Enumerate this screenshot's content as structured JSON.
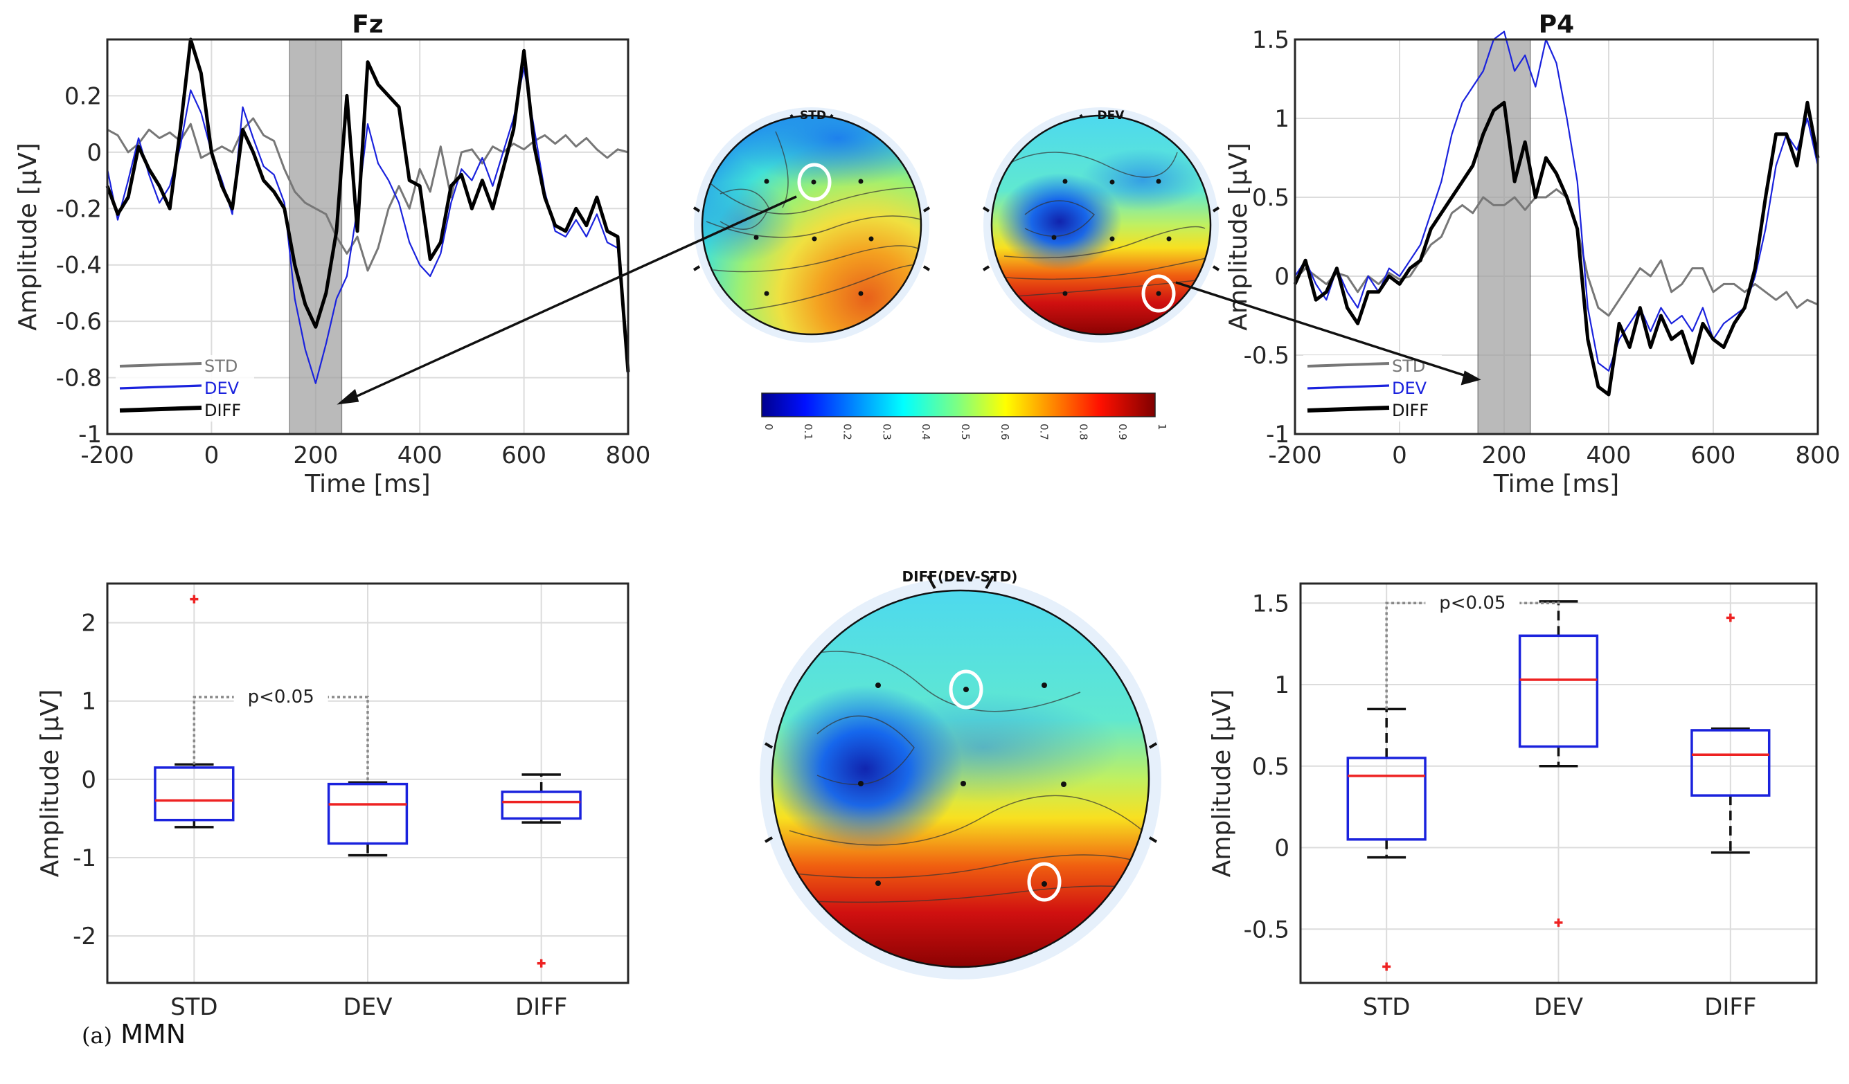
{
  "caption": {
    "label": "(a)",
    "text": "MMN"
  },
  "colors": {
    "std": "#777777",
    "dev": "#1a22dd",
    "diff": "#000000",
    "window": "#9e9e9e",
    "box": "#1a22dd",
    "median": "#ee2222",
    "outlier": "#ee2222",
    "grid": "#dcdcdc"
  },
  "chart_data": [
    {
      "id": "erp_fz",
      "type": "line",
      "title": "Fz",
      "xlabel": "Time [ms]",
      "ylabel": "Amplitude [µV]",
      "xlim": [
        -200,
        800
      ],
      "ylim": [
        -1,
        0.4
      ],
      "xticks": [
        -200,
        0,
        200,
        400,
        600,
        800
      ],
      "yticks": [
        0.2,
        0,
        -0.2,
        -0.4,
        -0.6,
        -0.8,
        -1
      ],
      "ytick_labels": [
        "0.2",
        "0",
        "-0.2",
        "-0.4",
        "-0.6",
        "-0.8",
        "-1"
      ],
      "grid": true,
      "legend": "bottom-left",
      "shaded_window": [
        150,
        250
      ],
      "series": [
        {
          "name": "STD",
          "x": [
            -200,
            -180,
            -160,
            -140,
            -120,
            -100,
            -80,
            -60,
            -40,
            -20,
            0,
            20,
            40,
            60,
            80,
            100,
            120,
            140,
            160,
            180,
            200,
            220,
            240,
            260,
            280,
            300,
            320,
            340,
            360,
            380,
            400,
            420,
            440,
            460,
            480,
            500,
            520,
            540,
            560,
            580,
            600,
            620,
            640,
            660,
            680,
            700,
            720,
            740,
            760,
            780,
            800
          ],
          "y": [
            0.08,
            0.06,
            0.0,
            0.03,
            0.08,
            0.05,
            0.07,
            0.04,
            0.1,
            -0.02,
            0.0,
            0.02,
            0.0,
            0.08,
            0.12,
            0.06,
            0.04,
            -0.06,
            -0.14,
            -0.18,
            -0.2,
            -0.22,
            -0.3,
            -0.36,
            -0.3,
            -0.42,
            -0.34,
            -0.2,
            -0.12,
            -0.2,
            -0.06,
            -0.14,
            0.02,
            -0.16,
            0.0,
            0.01,
            -0.04,
            0.02,
            0.0,
            0.03,
            0.01,
            0.04,
            0.06,
            0.03,
            0.06,
            0.02,
            0.05,
            0.01,
            -0.02,
            0.01,
            0.0
          ]
        },
        {
          "name": "DEV",
          "x": [
            -200,
            -180,
            -160,
            -140,
            -120,
            -100,
            -80,
            -60,
            -40,
            -20,
            0,
            20,
            40,
            60,
            80,
            100,
            120,
            140,
            160,
            180,
            200,
            220,
            240,
            260,
            280,
            300,
            320,
            340,
            360,
            380,
            400,
            420,
            440,
            460,
            480,
            500,
            520,
            540,
            560,
            580,
            600,
            620,
            640,
            660,
            680,
            700,
            720,
            740,
            760,
            780,
            800
          ],
          "y": [
            -0.06,
            -0.24,
            -0.1,
            0.05,
            -0.08,
            -0.18,
            -0.12,
            0.02,
            0.22,
            0.14,
            0.0,
            -0.1,
            -0.22,
            0.16,
            0.05,
            -0.05,
            -0.08,
            -0.18,
            -0.52,
            -0.7,
            -0.82,
            -0.68,
            -0.52,
            -0.44,
            -0.2,
            0.1,
            -0.04,
            -0.1,
            -0.18,
            -0.32,
            -0.4,
            -0.44,
            -0.36,
            -0.18,
            -0.06,
            -0.1,
            -0.02,
            -0.12,
            0.0,
            0.12,
            0.3,
            0.08,
            -0.14,
            -0.28,
            -0.3,
            -0.24,
            -0.3,
            -0.22,
            -0.32,
            -0.34,
            -0.8
          ]
        },
        {
          "name": "DIFF",
          "x": [
            -200,
            -180,
            -160,
            -140,
            -120,
            -100,
            -80,
            -60,
            -40,
            -20,
            0,
            20,
            40,
            60,
            80,
            100,
            120,
            140,
            160,
            180,
            200,
            220,
            240,
            260,
            280,
            300,
            320,
            340,
            360,
            380,
            400,
            420,
            440,
            460,
            480,
            500,
            520,
            540,
            560,
            580,
            600,
            620,
            640,
            660,
            680,
            700,
            720,
            740,
            760,
            780,
            800
          ],
          "y": [
            -0.12,
            -0.22,
            -0.16,
            0.02,
            -0.06,
            -0.12,
            -0.2,
            0.08,
            0.4,
            0.28,
            0.0,
            -0.12,
            -0.2,
            0.08,
            0.0,
            -0.1,
            -0.14,
            -0.2,
            -0.4,
            -0.54,
            -0.62,
            -0.5,
            -0.28,
            0.2,
            -0.28,
            0.32,
            0.24,
            0.2,
            0.16,
            -0.1,
            -0.12,
            -0.38,
            -0.32,
            -0.12,
            -0.08,
            -0.2,
            -0.1,
            -0.2,
            -0.06,
            0.08,
            0.36,
            0.02,
            -0.16,
            -0.26,
            -0.28,
            -0.2,
            -0.26,
            -0.16,
            -0.28,
            -0.3,
            -0.78
          ]
        }
      ]
    },
    {
      "id": "erp_p4",
      "type": "line",
      "title": "P4",
      "xlabel": "Time [ms]",
      "ylabel": "Amplitude [µV]",
      "xlim": [
        -200,
        800
      ],
      "ylim": [
        -1,
        1.5
      ],
      "xticks": [
        -200,
        0,
        200,
        400,
        600,
        800
      ],
      "yticks": [
        1.5,
        1,
        0.5,
        0,
        -0.5,
        -1
      ],
      "ytick_labels": [
        "1.5",
        "1",
        "0.5",
        "0",
        "-0.5",
        "-1"
      ],
      "grid": true,
      "legend": "bottom-left",
      "shaded_window": [
        150,
        250
      ],
      "series": [
        {
          "name": "STD",
          "x": [
            -200,
            -180,
            -160,
            -140,
            -120,
            -100,
            -80,
            -60,
            -40,
            -20,
            0,
            20,
            40,
            60,
            80,
            100,
            120,
            140,
            160,
            180,
            200,
            220,
            240,
            260,
            280,
            300,
            320,
            340,
            360,
            380,
            400,
            420,
            440,
            460,
            480,
            500,
            520,
            540,
            560,
            580,
            600,
            620,
            640,
            660,
            680,
            700,
            720,
            740,
            760,
            780,
            800
          ],
          "y": [
            -0.02,
            0.05,
            0.0,
            -0.05,
            0.02,
            0.0,
            -0.1,
            0.0,
            -0.05,
            0.02,
            -0.02,
            0.0,
            0.1,
            0.2,
            0.25,
            0.4,
            0.45,
            0.4,
            0.5,
            0.45,
            0.45,
            0.5,
            0.42,
            0.5,
            0.5,
            0.55,
            0.5,
            0.3,
            0.0,
            -0.2,
            -0.25,
            -0.15,
            -0.05,
            0.05,
            0.0,
            0.1,
            -0.1,
            -0.05,
            0.05,
            0.05,
            -0.1,
            -0.05,
            -0.05,
            -0.1,
            -0.05,
            -0.1,
            -0.15,
            -0.1,
            -0.2,
            -0.15,
            -0.18
          ]
        },
        {
          "name": "DEV",
          "x": [
            -200,
            -180,
            -160,
            -140,
            -120,
            -100,
            -80,
            -60,
            -40,
            -20,
            0,
            20,
            40,
            60,
            80,
            100,
            120,
            140,
            160,
            180,
            200,
            220,
            240,
            260,
            280,
            300,
            320,
            340,
            360,
            380,
            400,
            420,
            440,
            460,
            480,
            500,
            520,
            540,
            560,
            580,
            600,
            620,
            640,
            660,
            680,
            700,
            720,
            740,
            760,
            780,
            800
          ],
          "y": [
            0.0,
            0.1,
            -0.05,
            -0.15,
            0.05,
            -0.1,
            -0.2,
            0.0,
            -0.1,
            0.05,
            0.0,
            0.1,
            0.2,
            0.4,
            0.6,
            0.9,
            1.1,
            1.2,
            1.3,
            1.5,
            1.55,
            1.3,
            1.4,
            1.2,
            1.5,
            1.35,
            1.0,
            0.6,
            -0.2,
            -0.55,
            -0.6,
            -0.4,
            -0.3,
            -0.2,
            -0.35,
            -0.2,
            -0.3,
            -0.25,
            -0.35,
            -0.2,
            -0.4,
            -0.3,
            -0.25,
            -0.2,
            0.0,
            0.3,
            0.7,
            0.9,
            0.8,
            1.0,
            0.7
          ]
        },
        {
          "name": "DIFF",
          "x": [
            -200,
            -180,
            -160,
            -140,
            -120,
            -100,
            -80,
            -60,
            -40,
            -20,
            0,
            20,
            40,
            60,
            80,
            100,
            120,
            140,
            160,
            180,
            200,
            220,
            240,
            260,
            280,
            300,
            320,
            340,
            360,
            380,
            400,
            420,
            440,
            460,
            480,
            500,
            520,
            540,
            560,
            580,
            600,
            620,
            640,
            660,
            680,
            700,
            720,
            740,
            760,
            780,
            800
          ],
          "y": [
            -0.05,
            0.1,
            -0.15,
            -0.1,
            0.05,
            -0.2,
            -0.3,
            -0.1,
            -0.1,
            0.0,
            -0.05,
            0.05,
            0.1,
            0.3,
            0.4,
            0.5,
            0.6,
            0.7,
            0.9,
            1.05,
            1.1,
            0.6,
            0.85,
            0.5,
            0.75,
            0.65,
            0.5,
            0.3,
            -0.4,
            -0.7,
            -0.75,
            -0.3,
            -0.45,
            -0.2,
            -0.45,
            -0.25,
            -0.4,
            -0.35,
            -0.55,
            -0.3,
            -0.4,
            -0.45,
            -0.3,
            -0.2,
            0.05,
            0.5,
            0.9,
            0.9,
            0.7,
            1.1,
            0.75
          ]
        }
      ]
    },
    {
      "id": "box_fz",
      "type": "box",
      "ylabel": "Amplitude [µV]",
      "categories": [
        "STD",
        "DEV",
        "DIFF"
      ],
      "ylim": [
        -2.6,
        2.5
      ],
      "yticks": [
        2,
        1,
        0,
        -1,
        -2
      ],
      "ytick_labels": [
        "2",
        "1",
        "0",
        "-1",
        "-2"
      ],
      "grid": true,
      "boxes": [
        {
          "q1": -0.52,
          "median": -0.27,
          "q3": 0.15,
          "whisker_low": -0.61,
          "whisker_high": 0.19,
          "outliers": [
            2.3
          ]
        },
        {
          "q1": -0.82,
          "median": -0.32,
          "q3": -0.06,
          "whisker_low": -0.97,
          "whisker_high": -0.04,
          "outliers": []
        },
        {
          "q1": -0.5,
          "median": -0.29,
          "q3": -0.16,
          "whisker_low": -0.55,
          "whisker_high": 0.06,
          "outliers": [
            -2.35
          ]
        }
      ],
      "significance": {
        "label": "p<0.05",
        "from": 0,
        "to": 1,
        "y": 1.05
      }
    },
    {
      "id": "box_p4",
      "type": "box",
      "ylabel": "Amplitude [µV]",
      "categories": [
        "STD",
        "DEV",
        "DIFF"
      ],
      "ylim": [
        -0.83,
        1.62
      ],
      "yticks": [
        1.5,
        1,
        0.5,
        0,
        -0.5
      ],
      "ytick_labels": [
        "1.5",
        "1",
        "0.5",
        "0",
        "-0.5"
      ],
      "grid": true,
      "boxes": [
        {
          "q1": 0.05,
          "median": 0.44,
          "q3": 0.55,
          "whisker_low": -0.06,
          "whisker_high": 0.85,
          "outliers": [
            -0.73
          ]
        },
        {
          "q1": 0.62,
          "median": 1.03,
          "q3": 1.3,
          "whisker_low": 0.5,
          "whisker_high": 1.51,
          "outliers": [
            -0.46
          ]
        },
        {
          "q1": 0.32,
          "median": 0.57,
          "q3": 0.72,
          "whisker_low": -0.03,
          "whisker_high": 0.73,
          "outliers": [
            1.41
          ]
        }
      ],
      "significance": {
        "label": "p<0.05",
        "from": 0,
        "to": 1,
        "y": 1.5
      }
    },
    {
      "id": "topomaps",
      "type": "heatmap",
      "maps": [
        {
          "title": "STD",
          "highlight": "Fz"
        },
        {
          "title": "DEV",
          "highlight": "P4"
        },
        {
          "title": "DIFF(DEV-STD)",
          "highlight": [
            "Fz",
            "P4"
          ]
        }
      ],
      "colorbar": {
        "min": 0,
        "max": 1,
        "ticks": [
          "0",
          "0.1",
          "0.2",
          "0.3",
          "0.4",
          "0.5",
          "0.6",
          "0.7",
          "0.8",
          "0.9",
          "1"
        ]
      }
    }
  ]
}
